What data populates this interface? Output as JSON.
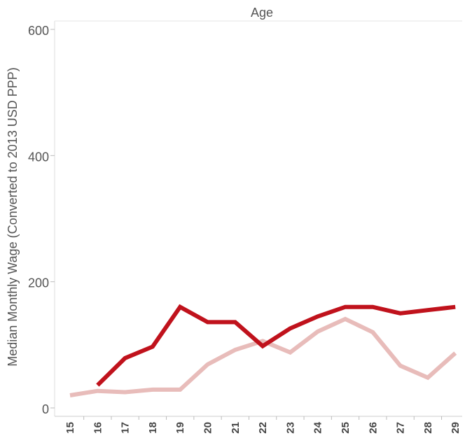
{
  "chart_data": {
    "type": "line",
    "title": "",
    "xlabel": "Age",
    "ylabel": "Median Monthly Wage (Converted to 2013 USD PPP)",
    "categories": [
      "15",
      "16",
      "17",
      "18",
      "19",
      "20",
      "21",
      "22",
      "23",
      "24",
      "25",
      "26",
      "27",
      "28",
      "29"
    ],
    "ylim": [
      0,
      600
    ],
    "yticks": [
      0,
      200,
      400,
      600
    ],
    "grid": false,
    "legend": "none",
    "series": [
      {
        "color": "#c0121c",
        "values": [
          null,
          36,
          79,
          97,
          160,
          136,
          136,
          98,
          126,
          145,
          160,
          160,
          150,
          155,
          160
        ]
      },
      {
        "color": "#e8bcba",
        "values": [
          20,
          27,
          25,
          29,
          29,
          69,
          92,
          106,
          88,
          121,
          141,
          120,
          67,
          48,
          87
        ]
      }
    ]
  }
}
